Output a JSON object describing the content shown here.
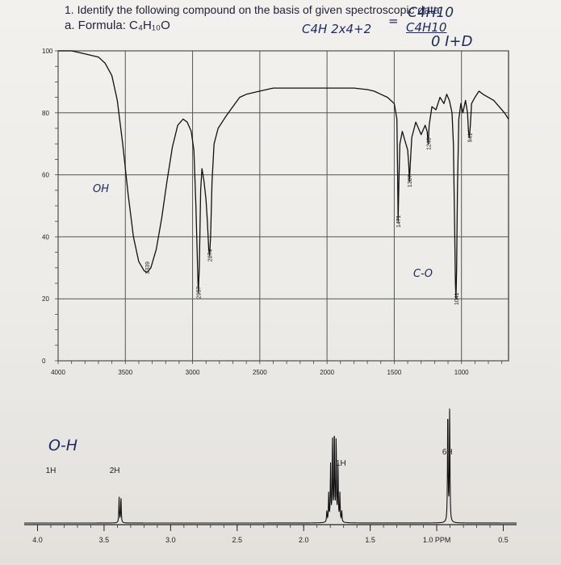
{
  "question": {
    "line1": "1.  Identify the following compound on the basis of given spectroscopic data",
    "line2": "a. Formula: C₄H₁₀O"
  },
  "handwriting": {
    "formula_top": "C4H10",
    "formula_mid": "C4H 2x4+2",
    "equals": "=",
    "formula_frac": "C4H10",
    "dbe": "0 I+D",
    "oh_ir": "OH",
    "co_ir": "C-O",
    "oh_nmr": "O-H"
  },
  "chart_data": [
    {
      "type": "line",
      "name": "ir-spectrum",
      "x_ticks": [
        4000,
        3500,
        3000,
        2500,
        2000,
        1500,
        1000
      ],
      "x_tick_labels": [
        "4000",
        "3500",
        "3000",
        "2500",
        "2000",
        "1500",
        "1000"
      ],
      "y_ticks": [
        0,
        20,
        40,
        60,
        80,
        100
      ],
      "y_tick_labels": [
        "0",
        "20",
        "40",
        "60",
        "80",
        "100"
      ],
      "xlim": [
        4000,
        650
      ],
      "ylim": [
        0,
        100
      ],
      "peak_labels": [
        {
          "x": 3339,
          "y": 30,
          "text": "3339"
        },
        {
          "x": 2957,
          "y": 22,
          "text": "2957"
        },
        {
          "x": 2874,
          "y": 34,
          "text": "2874"
        },
        {
          "x": 1471,
          "y": 45,
          "text": "1471"
        },
        {
          "x": 1387,
          "y": 58,
          "text": "1387"
        },
        {
          "x": 1248,
          "y": 70,
          "text": "1248"
        },
        {
          "x": 1041,
          "y": 20,
          "text": "1041"
        },
        {
          "x": 941,
          "y": 72,
          "text": "941"
        }
      ],
      "series": [
        {
          "x": [
            4000,
            3900,
            3800,
            3700,
            3650,
            3600,
            3560,
            3520,
            3480,
            3440,
            3400,
            3360,
            3339,
            3310,
            3270,
            3230,
            3190,
            3150,
            3110,
            3070,
            3040,
            3010,
            2990,
            2975,
            2960,
            2957,
            2950,
            2940,
            2930,
            2915,
            2900,
            2890,
            2880,
            2874,
            2866,
            2855,
            2840,
            2810,
            2780,
            2750,
            2700,
            2650,
            2600,
            2500,
            2400,
            2300,
            2200,
            2100,
            2000,
            1900,
            1800,
            1700,
            1650,
            1600,
            1550,
            1500,
            1480,
            1475,
            1471,
            1465,
            1458,
            1440,
            1420,
            1400,
            1392,
            1387,
            1380,
            1370,
            1340,
            1300,
            1270,
            1255,
            1248,
            1240,
            1220,
            1190,
            1160,
            1130,
            1110,
            1090,
            1070,
            1060,
            1050,
            1045,
            1041,
            1036,
            1030,
            1020,
            1005,
            990,
            970,
            955,
            948,
            941,
            934,
            925,
            900,
            870,
            840,
            800,
            760,
            720,
            680,
            650
          ],
          "y": [
            100,
            100,
            99,
            98,
            96,
            92,
            84,
            70,
            54,
            40,
            32,
            29,
            28.5,
            30,
            36,
            46,
            58,
            69,
            76,
            78,
            77,
            74,
            68,
            50,
            26,
            22,
            30,
            55,
            62,
            58,
            52,
            45,
            36,
            34,
            40,
            58,
            70,
            75,
            77,
            79,
            82,
            85,
            86,
            87,
            88,
            88,
            88,
            88,
            88,
            88,
            88,
            87.5,
            87,
            86,
            85,
            83,
            78,
            60,
            45,
            58,
            70,
            74,
            71,
            68,
            63,
            58,
            64,
            72,
            77,
            73,
            76,
            74,
            70,
            76,
            82,
            81,
            85,
            83,
            86,
            84,
            80,
            70,
            40,
            25,
            20,
            30,
            55,
            78,
            83,
            80,
            84,
            80,
            74,
            72,
            76,
            83,
            85,
            87,
            86,
            85,
            84,
            82,
            80,
            78
          ]
        }
      ]
    },
    {
      "type": "line",
      "name": "1h-nmr-spectrum",
      "x_ticks": [
        4.0,
        3.5,
        3.0,
        2.5,
        2.0,
        1.5,
        1.0,
        0.5
      ],
      "x_tick_labels": [
        "4.0",
        "3.5",
        "3.0",
        "2.5",
        "2.0",
        "1.5",
        "1.0 PPM",
        "0.5"
      ],
      "xlim": [
        4.1,
        0.4
      ],
      "integrations": [
        {
          "x": 3.9,
          "text": "1H"
        },
        {
          "x": 3.42,
          "text": "2H"
        },
        {
          "x": 1.72,
          "text": "1H"
        },
        {
          "x": 0.92,
          "text": "6H"
        }
      ],
      "signals": [
        {
          "shift": 3.38,
          "multiplicity": "d",
          "relative_height": 0.22
        },
        {
          "shift": 1.77,
          "multiplicity": "m",
          "relative_height": 0.8
        },
        {
          "shift": 0.91,
          "multiplicity": "d",
          "relative_height": 1.0
        }
      ]
    }
  ]
}
